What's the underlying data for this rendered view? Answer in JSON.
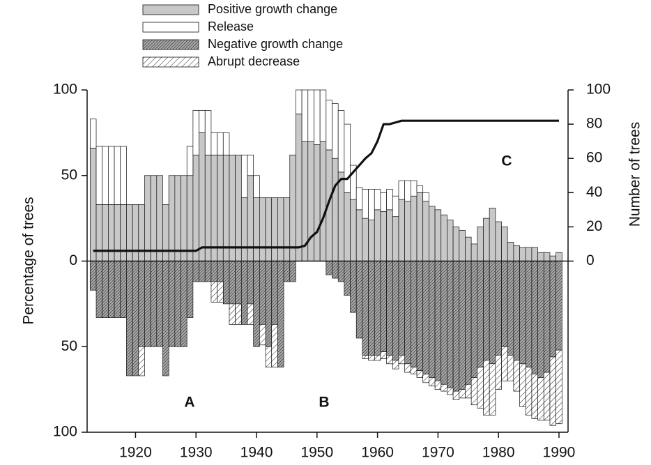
{
  "chart_data": {
    "type": "bar",
    "x": [
      1913,
      1914,
      1915,
      1916,
      1917,
      1918,
      1919,
      1920,
      1921,
      1922,
      1923,
      1924,
      1925,
      1926,
      1927,
      1928,
      1929,
      1930,
      1931,
      1932,
      1933,
      1934,
      1935,
      1936,
      1937,
      1938,
      1939,
      1940,
      1941,
      1942,
      1943,
      1944,
      1945,
      1946,
      1947,
      1948,
      1949,
      1950,
      1951,
      1952,
      1953,
      1954,
      1955,
      1956,
      1957,
      1958,
      1959,
      1960,
      1961,
      1962,
      1963,
      1964,
      1965,
      1966,
      1967,
      1968,
      1969,
      1970,
      1971,
      1972,
      1973,
      1974,
      1975,
      1976,
      1977,
      1978,
      1979,
      1980,
      1981,
      1982,
      1983,
      1984,
      1985,
      1986,
      1987,
      1988,
      1989,
      1990
    ],
    "series": [
      {
        "name": "Positive growth change",
        "color": "#c8c8c8",
        "values": [
          66,
          33,
          33,
          33,
          33,
          33,
          33,
          33,
          33,
          50,
          50,
          50,
          33,
          50,
          50,
          50,
          50,
          62,
          75,
          62,
          62,
          62,
          62,
          62,
          62,
          37,
          50,
          37,
          37,
          37,
          37,
          37,
          37,
          62,
          86,
          70,
          70,
          68,
          70,
          65,
          60,
          52,
          40,
          36,
          30,
          25,
          24,
          30,
          29,
          30,
          26,
          36,
          35,
          38,
          40,
          35,
          32,
          30,
          27,
          24,
          20,
          18,
          14,
          10,
          20,
          25,
          31,
          23,
          20,
          11,
          9,
          8,
          8,
          8,
          5,
          5,
          3,
          5
        ]
      },
      {
        "name": "Release",
        "color": "#ffffff",
        "values": [
          17,
          34,
          34,
          34,
          34,
          34,
          0,
          0,
          0,
          0,
          0,
          0,
          0,
          0,
          0,
          0,
          17,
          26,
          13,
          26,
          13,
          13,
          13,
          0,
          0,
          25,
          12,
          13,
          0,
          0,
          0,
          0,
          0,
          0,
          14,
          30,
          30,
          32,
          30,
          29,
          32,
          36,
          40,
          20,
          13,
          17,
          18,
          12,
          11,
          12,
          12,
          11,
          12,
          9,
          4,
          5,
          0,
          0,
          0,
          0,
          0,
          0,
          0,
          0,
          0,
          0,
          0,
          0,
          0,
          0,
          0,
          0,
          0,
          0,
          0,
          0,
          0,
          0
        ]
      },
      {
        "name": "Negative growth change",
        "color": "#a8a8a8",
        "hatch": "dense",
        "values": [
          -17,
          -33,
          -33,
          -33,
          -33,
          -33,
          -67,
          -67,
          -50,
          -50,
          -50,
          -50,
          -67,
          -50,
          -50,
          -50,
          -33,
          -12,
          -12,
          -12,
          -12,
          -12,
          -25,
          -25,
          -25,
          -37,
          -25,
          -50,
          -37,
          -50,
          -37,
          -62,
          -12,
          -12,
          0,
          0,
          0,
          0,
          0,
          -8,
          -10,
          -12,
          -20,
          -30,
          -45,
          -55,
          -55,
          -55,
          -53,
          -55,
          -58,
          -55,
          -60,
          -62,
          -64,
          -66,
          -68,
          -70,
          -72,
          -74,
          -76,
          -75,
          -72,
          -68,
          -62,
          -58,
          -60,
          -55,
          -50,
          -55,
          -58,
          -60,
          -62,
          -66,
          -68,
          -65,
          -56,
          -52
        ]
      },
      {
        "name": "Abrupt decrease",
        "color": "#ffffff",
        "hatch": "sparse",
        "values": [
          0,
          0,
          0,
          0,
          0,
          0,
          0,
          0,
          -17,
          0,
          0,
          0,
          0,
          0,
          0,
          0,
          0,
          0,
          0,
          0,
          -12,
          -12,
          0,
          -12,
          -12,
          0,
          -12,
          0,
          -12,
          -12,
          -25,
          0,
          0,
          0,
          0,
          0,
          0,
          0,
          0,
          0,
          0,
          0,
          0,
          0,
          0,
          -2,
          -3,
          -3,
          -4,
          -5,
          -5,
          -5,
          -5,
          -4,
          -4,
          -5,
          -5,
          -5,
          -4,
          -4,
          -5,
          -5,
          -8,
          -16,
          -24,
          -32,
          -30,
          -20,
          -20,
          -15,
          -18,
          -25,
          -28,
          -26,
          -25,
          -28,
          -40,
          -43
        ]
      },
      {
        "mark": "line",
        "axis": "y2",
        "color": "#111111",
        "values": [
          6,
          6,
          6,
          6,
          6,
          6,
          6,
          6,
          6,
          6,
          6,
          6,
          6,
          6,
          6,
          6,
          6,
          6,
          8,
          8,
          8,
          8,
          8,
          8,
          8,
          8,
          8,
          8,
          8,
          8,
          8,
          8,
          8,
          8,
          8,
          9,
          14,
          17,
          25,
          35,
          44,
          48,
          48,
          52,
          56,
          60,
          63,
          70,
          80,
          80,
          81,
          82,
          82,
          82,
          82,
          82,
          82,
          82,
          82,
          82,
          82,
          82,
          82,
          82,
          82,
          82,
          82,
          82,
          82,
          82,
          82,
          82,
          82,
          82,
          82,
          82,
          82,
          82
        ]
      }
    ],
    "xlim": [
      1912,
      1991.5
    ],
    "xticks": [
      1920,
      1930,
      1940,
      1950,
      1960,
      1970,
      1980,
      1990
    ],
    "ylim": [
      -100,
      100
    ],
    "yticks": [
      {
        "value": -100,
        "label": "100"
      },
      {
        "value": -50,
        "label": "50"
      },
      0,
      50,
      100
    ],
    "y2lim": [
      0,
      100
    ],
    "y2ticks": [
      0,
      20,
      40,
      60,
      80,
      100
    ],
    "ylabel": "Percentage of trees",
    "y2label": "Number of trees",
    "annotations": [
      "A",
      "B",
      "C"
    ]
  }
}
